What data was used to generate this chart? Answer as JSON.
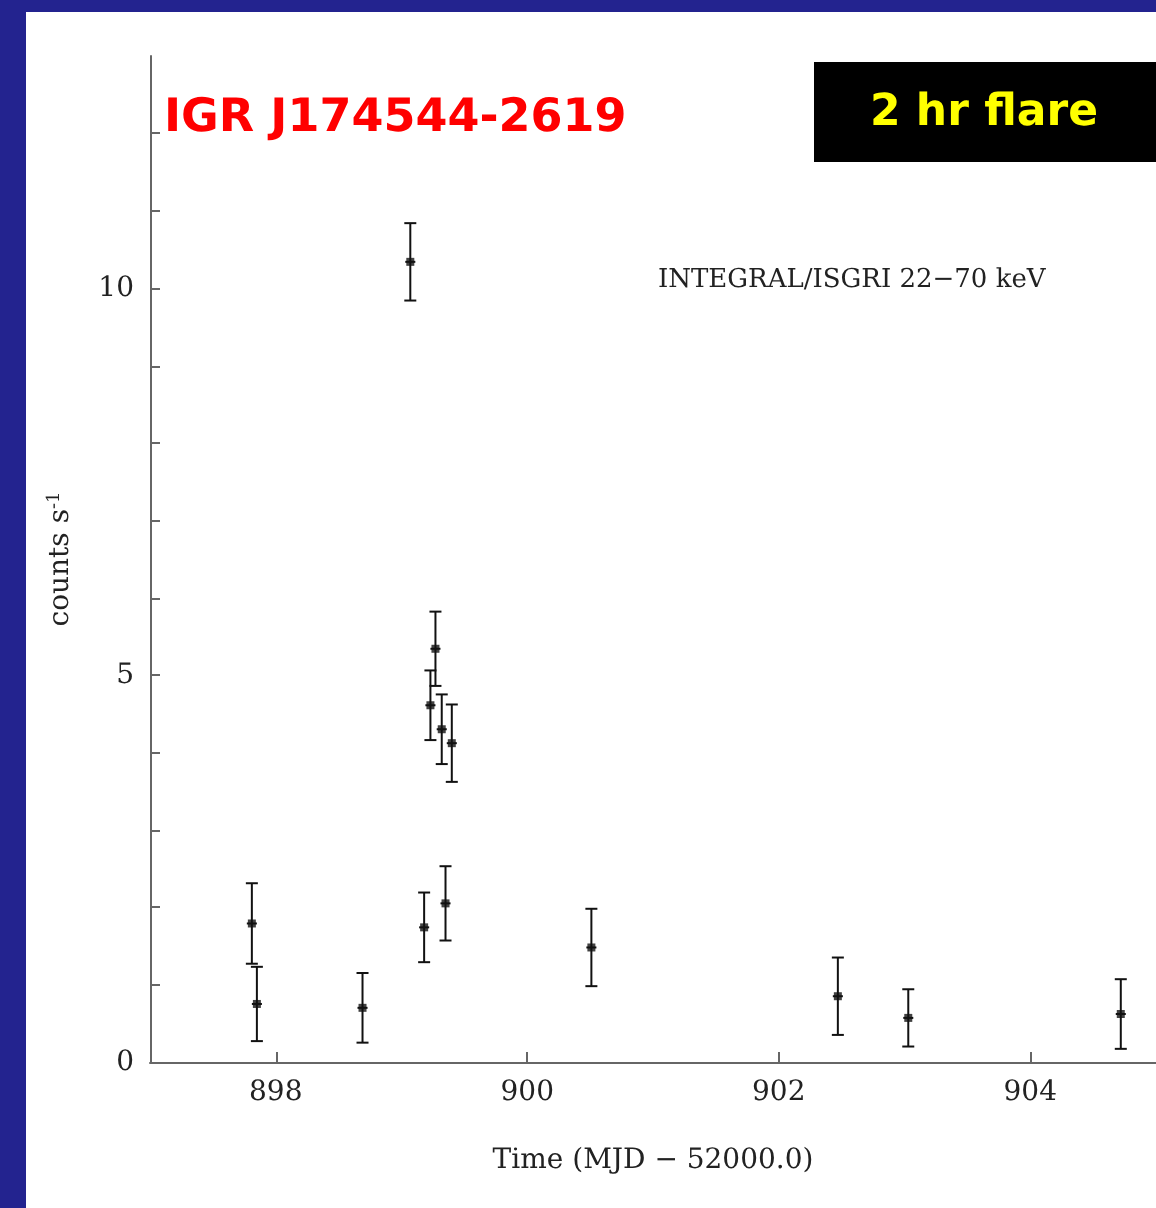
{
  "chart_data": {
    "type": "scatter",
    "title": "IGR J174544-2619",
    "xlabel": "Time (MJD − 52000.0)",
    "ylabel": "counts s$^{-1}$",
    "annotations": [
      "2 hr flare",
      "INTEGRAL/ISGRI 22−70 keV"
    ],
    "x": [
      897.81,
      897.85,
      898.69,
      899.07,
      899.18,
      899.23,
      899.27,
      899.32,
      899.35,
      899.4,
      900.51,
      902.47,
      903.03,
      904.72
    ],
    "values": [
      1.79,
      0.75,
      0.7,
      10.34,
      1.74,
      4.61,
      5.34,
      4.3,
      2.05,
      4.12,
      1.48,
      0.85,
      0.57,
      0.62
    ],
    "errors": [
      0.52,
      0.48,
      0.45,
      0.5,
      0.45,
      0.45,
      0.48,
      0.45,
      0.48,
      0.5,
      0.5,
      0.5,
      0.37,
      0.45
    ],
    "xerrors": [
      0.04,
      0.04,
      0.04,
      0.04,
      0.04,
      0.04,
      0.04,
      0.04,
      0.04,
      0.04,
      0.04,
      0.04,
      0.04,
      0.04
    ],
    "color": "#111111",
    "marker": "square",
    "xlim": [
      897,
      905
    ],
    "xticks": [
      898,
      900,
      902,
      904
    ],
    "ylim": [
      0,
      13
    ],
    "yticks": [
      0,
      {
        "value": 1,
        "label": null
      },
      {
        "value": 2,
        "label": null
      },
      {
        "value": 3,
        "label": null
      },
      {
        "value": 4,
        "label": null
      },
      5,
      {
        "value": 6,
        "label": null
      },
      {
        "value": 7,
        "label": null
      },
      {
        "value": 8,
        "label": null
      },
      {
        "value": 9,
        "label": null
      },
      10,
      {
        "value": 11,
        "label": null
      },
      {
        "value": 12,
        "label": null
      }
    ],
    "grid": false
  }
}
